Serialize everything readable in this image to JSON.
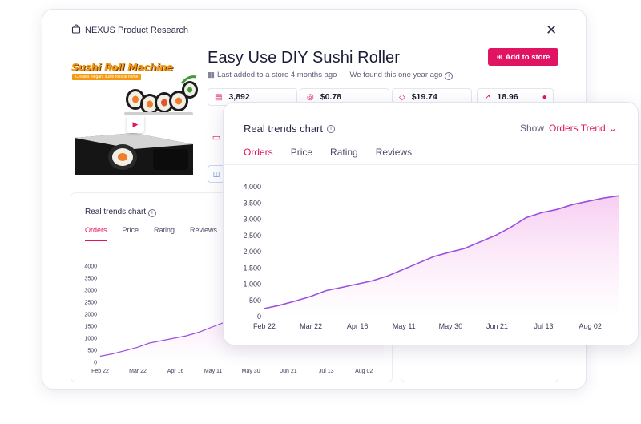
{
  "brand": {
    "name": "NEXUS Product Research",
    "icon": "bag-icon"
  },
  "close_icon": "✕",
  "product": {
    "title": "Easy Use DIY Sushi Roller",
    "image_title": "Sushi Roll Machine",
    "image_subtitle": "Creates elegant sushi rolls at home",
    "added": "Last added to a store 4 months ago",
    "found": "We found this one year ago"
  },
  "add_button": {
    "label": "Add to store",
    "icon": "plus-circle-icon"
  },
  "stats": [
    {
      "icon": "document-icon",
      "value": "3,892"
    },
    {
      "icon": "coins-icon",
      "value": "$0.78"
    },
    {
      "icon": "tag-icon",
      "value": "$19.74"
    },
    {
      "icon": "trend-icon",
      "value": "18.96"
    }
  ],
  "colors": {
    "accent": "#e01463",
    "line": "#9a4fe0",
    "fill_top": "#f6c9f0",
    "fill_bottom": "#ffffff"
  },
  "back_chart": {
    "title": "Real trends chart",
    "tabs": [
      "Orders",
      "Price",
      "Rating",
      "Reviews"
    ],
    "active_tab": "Orders"
  },
  "front_chart": {
    "title": "Real trends chart",
    "show_label": "Show",
    "dropdown_value": "Orders Trend",
    "tabs": [
      "Orders",
      "Price",
      "Rating",
      "Reviews"
    ],
    "active_tab": "Orders"
  },
  "chart_data": [
    {
      "type": "area",
      "title": "Real trends chart",
      "x_ticks": [
        "Feb 22",
        "Mar 22",
        "Apr 16",
        "May 11",
        "May 30",
        "Jun 21",
        "Jul 13",
        "Aug 02"
      ],
      "y_ticks": [
        0,
        500,
        1000,
        1500,
        2000,
        2500,
        3000,
        3500,
        4000
      ],
      "ylim": [
        0,
        4000
      ],
      "series": [
        {
          "values": [
            250,
            350,
            480,
            620,
            800,
            900,
            1000,
            1100,
            1250,
            1450,
            1650,
            1850,
            1980,
            2100,
            2300,
            2500,
            2750,
            3050,
            3200,
            3300,
            3450,
            3550,
            3650,
            3720
          ]
        }
      ]
    },
    {
      "type": "area",
      "title": "Real trends chart",
      "x_ticks": [
        "Feb 22",
        "Mar 22",
        "Apr 16",
        "May 11",
        "May 30",
        "Jun 21",
        "Jul 13",
        "Aug 02"
      ],
      "y_ticks": [
        "0",
        "500",
        "1,000",
        "1,500",
        "2,000",
        "2,500",
        "3,000",
        "3,500",
        "4,000"
      ],
      "ylim": [
        0,
        4000
      ],
      "series": [
        {
          "values": [
            250,
            350,
            480,
            620,
            800,
            900,
            1000,
            1100,
            1250,
            1450,
            1650,
            1850,
            1980,
            2100,
            2300,
            2500,
            2750,
            3050,
            3200,
            3300,
            3450,
            3550,
            3650,
            3720
          ]
        }
      ]
    }
  ]
}
